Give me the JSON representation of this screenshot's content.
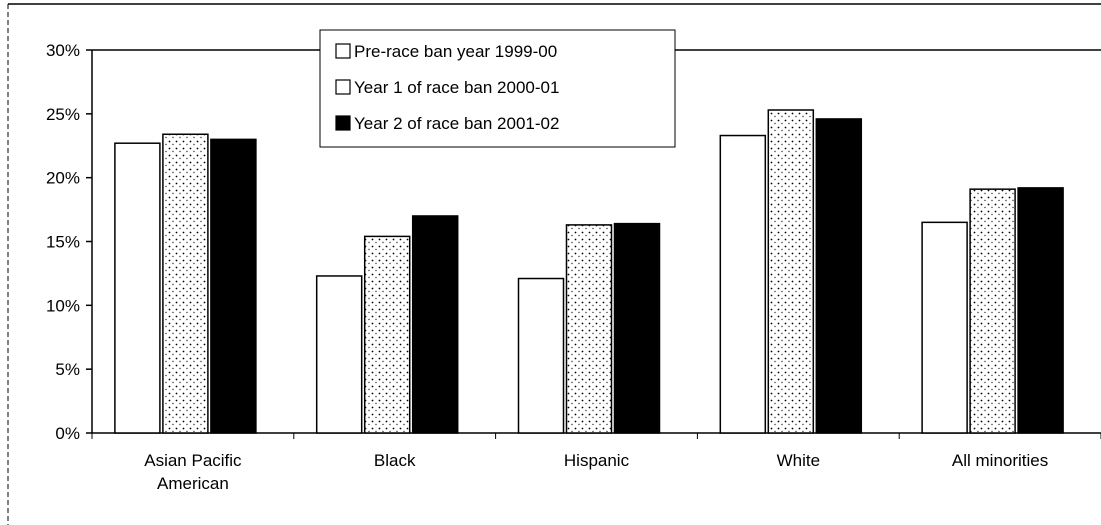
{
  "chart_data": {
    "type": "bar",
    "categories": [
      [
        "Asian Pacific",
        "American"
      ],
      [
        "Black"
      ],
      [
        "Hispanic"
      ],
      [
        "White"
      ],
      [
        "All minorities"
      ]
    ],
    "series": [
      {
        "name": "Pre-race ban year 1999-00",
        "values": [
          22.7,
          12.3,
          12.1,
          23.3,
          16.5
        ],
        "fill": "#ffffff",
        "pattern": "none"
      },
      {
        "name": "Year 1 of race ban 2000-01",
        "values": [
          23.4,
          15.4,
          16.3,
          25.3,
          19.1
        ],
        "fill": "#ffffff",
        "pattern": "dots"
      },
      {
        "name": "Year 2 of race ban 2001-02",
        "values": [
          23.0,
          17.0,
          16.4,
          24.6,
          19.2
        ],
        "fill": "#000000",
        "pattern": "none"
      }
    ],
    "ylim": [
      0,
      30
    ],
    "yticks": [
      0,
      5,
      10,
      15,
      20,
      25,
      30
    ],
    "ytick_labels": [
      "0%",
      "5%",
      "10%",
      "15%",
      "20%",
      "25%",
      "30%"
    ],
    "title": "",
    "xlabel": "",
    "ylabel": "",
    "grid": false,
    "legend_position": "top-center"
  }
}
